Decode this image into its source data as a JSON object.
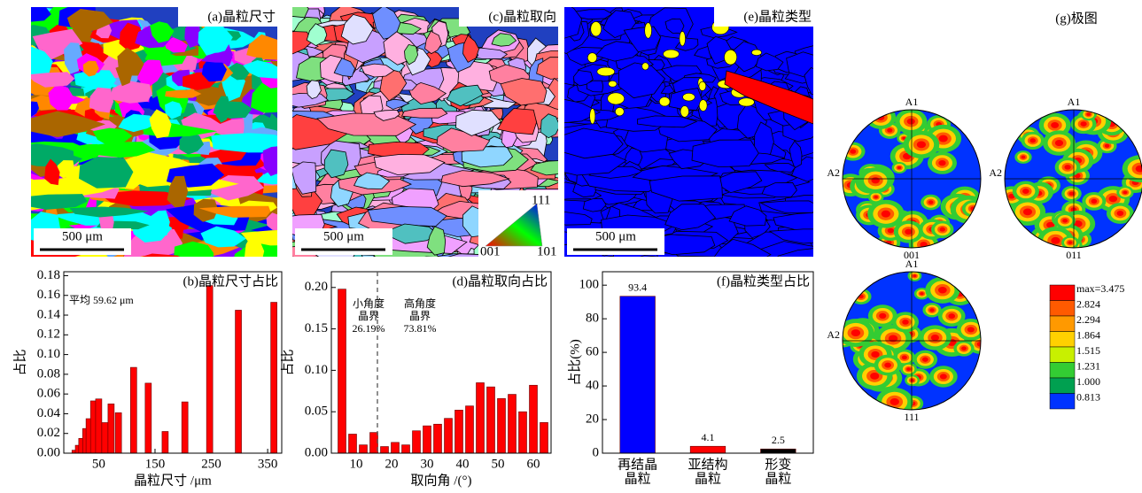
{
  "maps": [
    {
      "label": "(a)晶粒尺寸",
      "scale_bar": "500 μm"
    },
    {
      "label": "(c)晶粒取向",
      "scale_bar": "500 μm",
      "ipf_labels": [
        "111",
        "001",
        "101"
      ]
    },
    {
      "label": "(e)晶粒类型",
      "scale_bar": "500 μm"
    }
  ],
  "pole_figures": {
    "title": "(g)极图",
    "axis_labels": [
      "A1",
      "A2"
    ],
    "figures": [
      "001",
      "011",
      "111"
    ],
    "colorbar": {
      "levels": [
        {
          "value": 3.475,
          "label": "max=3.475"
        },
        2.824,
        2.294,
        1.864,
        1.515,
        1.231,
        {
          "value": 1.0,
          "label": "1.000"
        },
        0.813
      ],
      "colors": [
        "#ff0000",
        "#ff5a00",
        "#ff9900",
        "#ffd000",
        "#c8f000",
        "#33cc33",
        "#00a050",
        "#0033ff"
      ]
    }
  },
  "chart_data": [
    {
      "type": "bar",
      "title": "(b)晶粒尺寸占比",
      "annotation": "平均 59.62 μm",
      "x_label": "晶粒尺寸 /μm",
      "y_label": "占比",
      "color": "#ff0000",
      "x": [
        8,
        14,
        20,
        27,
        33,
        41,
        50,
        61,
        72,
        85,
        112,
        138,
        168,
        203,
        247,
        298,
        361
      ],
      "values": [
        0.003,
        0.008,
        0.015,
        0.025,
        0.035,
        0.053,
        0.055,
        0.031,
        0.05,
        0.041,
        0.087,
        0.071,
        0.022,
        0.052,
        0.17,
        0.145,
        0.153
      ],
      "xlim": [
        -12,
        375
      ],
      "xticks": [
        50,
        150,
        250,
        350
      ],
      "ylim": [
        0,
        0.184
      ],
      "yticks": [
        {
          "value": 0,
          "label": "0.00"
        },
        {
          "value": 0.02,
          "label": "0.02"
        },
        {
          "value": 0.04,
          "label": "0.04"
        },
        {
          "value": 0.06,
          "label": "0.06"
        },
        {
          "value": 0.08,
          "label": "0.08"
        },
        {
          "value": 0.1,
          "label": "0.10"
        },
        {
          "value": 0.12,
          "label": "0.12"
        },
        {
          "value": 0.14,
          "label": "0.14"
        },
        {
          "value": 0.16,
          "label": "0.16"
        },
        {
          "value": 0.18,
          "label": "0.18"
        }
      ]
    },
    {
      "type": "bar",
      "title": "(d)晶粒取向占比",
      "annotations": [
        [
          "小角度",
          "晶界",
          "26.19%"
        ],
        [
          "高角度",
          "晶界",
          "73.81%"
        ]
      ],
      "x_label": "取向角 /(°)",
      "y_label": "占比",
      "color": "#ff0000",
      "vline": 15,
      "x": [
        6,
        9,
        12,
        15,
        18,
        21,
        24,
        27,
        30,
        33,
        36,
        39,
        42,
        45,
        48,
        51,
        54,
        57,
        60,
        63
      ],
      "values": [
        0.198,
        0.023,
        0.01,
        0.025,
        0.008,
        0.013,
        0.01,
        0.027,
        0.033,
        0.035,
        0.042,
        0.052,
        0.057,
        0.085,
        0.08,
        0.066,
        0.071,
        0.05,
        0.082,
        0.037
      ],
      "xlim": [
        3,
        65
      ],
      "xticks": [
        10,
        20,
        30,
        40,
        50,
        60
      ],
      "ylim": [
        0,
        0.219
      ],
      "yticks": [
        {
          "value": 0,
          "label": "0.00"
        },
        {
          "value": 0.05,
          "label": "0.05"
        },
        {
          "value": 0.1,
          "label": "0.10"
        },
        {
          "value": 0.15,
          "label": "0.15"
        },
        {
          "value": 0.2,
          "label": "0.20"
        }
      ]
    },
    {
      "type": "bar",
      "title": "(f)晶粒类型占比",
      "y_label": "占比(%)",
      "categories": [
        [
          "再结晶",
          "晶粒"
        ],
        [
          "亚结构",
          "晶粒"
        ],
        [
          "形变",
          "晶粒"
        ]
      ],
      "values": [
        93.4,
        4.1,
        2.5
      ],
      "colors": [
        "#0000ff",
        "#ff0000",
        "#000000"
      ],
      "ylim": [
        0,
        108
      ],
      "yticks": [
        0,
        20,
        40,
        60,
        80,
        100
      ]
    }
  ]
}
